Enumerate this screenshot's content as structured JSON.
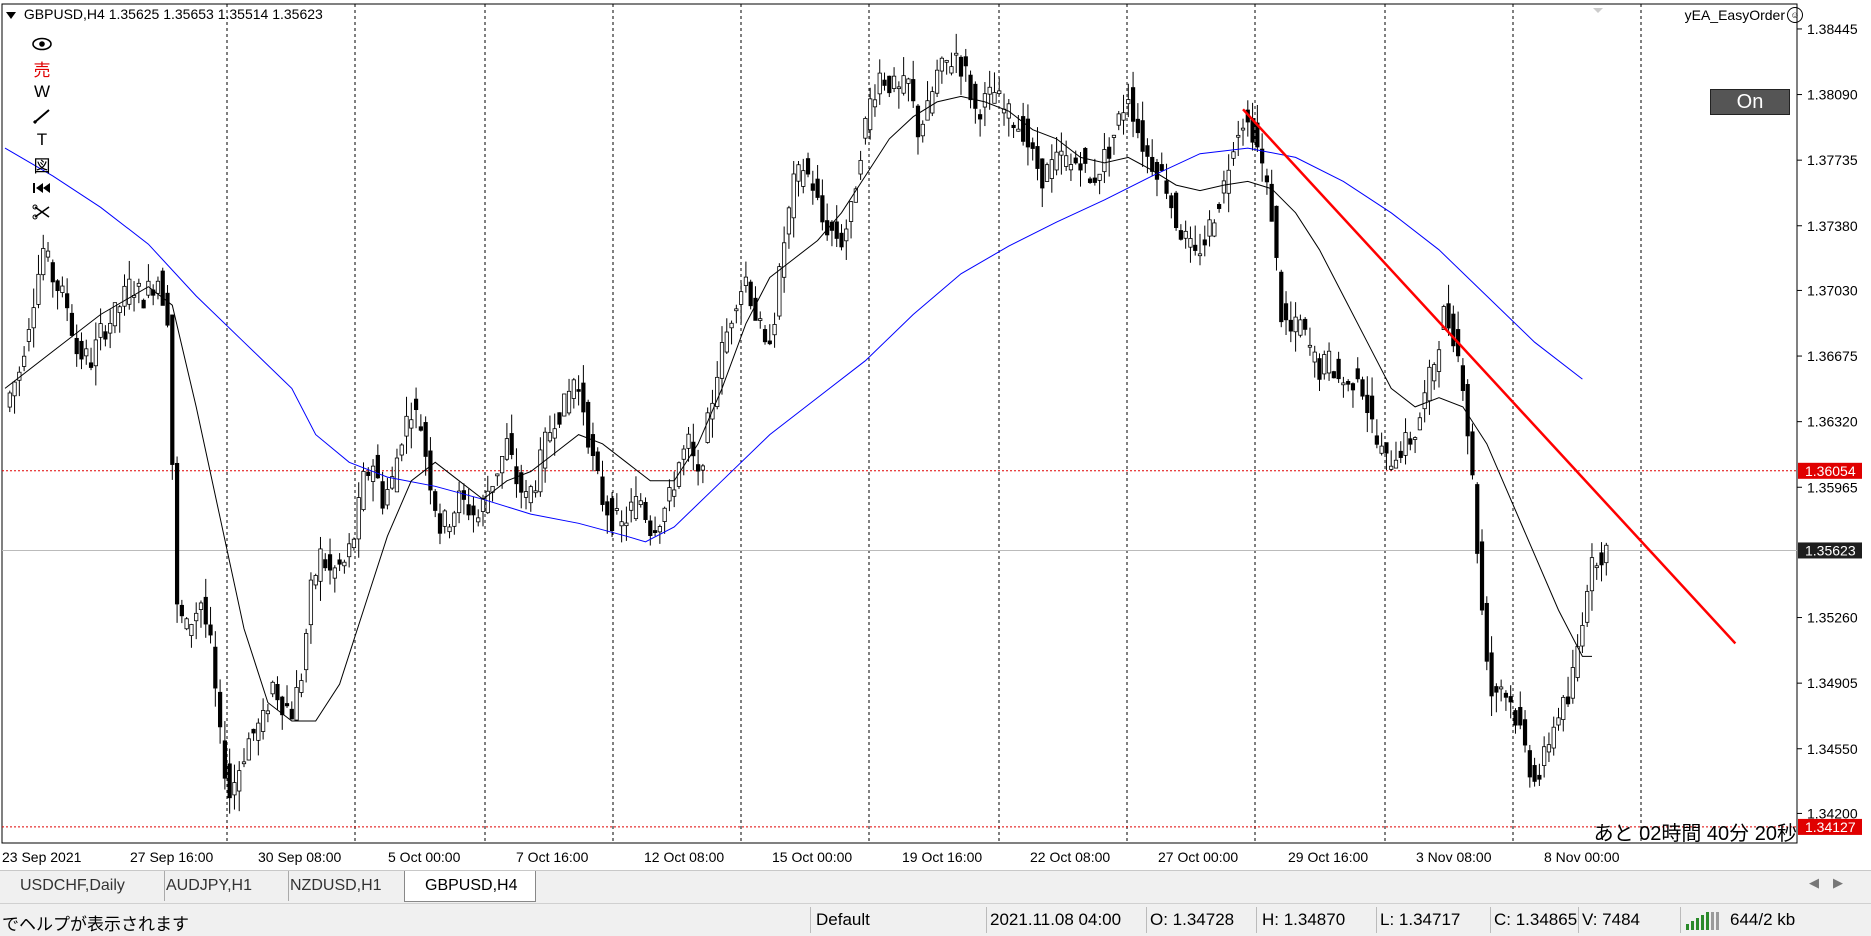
{
  "chart_header": {
    "symbol": "GBPUSD,H4",
    "ohlc": "1.35625 1.35653 1.35514 1.35623"
  },
  "ea": {
    "name": "yEA_EasyOrder",
    "on_label": "On",
    "countdown": "あと 02時間 40分 20秒"
  },
  "toolbar_icons": [
    "eye-icon",
    "sell-icon",
    "w-icon",
    "pen-icon",
    "text-icon",
    "shape-icon",
    "rewind-icon",
    "scissors-icon"
  ],
  "toolbar_text": {
    "sell": "売",
    "w": "W",
    "text": "T",
    "shape": "図"
  },
  "chart_data": {
    "type": "candlestick",
    "symbol": "GBPUSD",
    "timeframe": "H4",
    "ylim": [
      1.3404,
      1.3858
    ],
    "y_ticks": [
      "1.38445",
      "1.38090",
      "1.37735",
      "1.37380",
      "1.37030",
      "1.36675",
      "1.36320",
      "1.35965",
      "1.35260",
      "1.34905",
      "1.34550",
      "1.34200"
    ],
    "x_ticks": [
      "23 Sep 2021",
      "27 Sep 16:00",
      "30 Sep 08:00",
      "5 Oct 00:00",
      "7 Oct 16:00",
      "12 Oct 08:00",
      "15 Oct 00:00",
      "19 Oct 16:00",
      "22 Oct 08:00",
      "27 Oct 00:00",
      "29 Oct 16:00",
      "3 Nov 08:00",
      "8 Nov 00:00"
    ],
    "price_labels": [
      {
        "value": "1.36054",
        "price": 1.36054,
        "style": "red"
      },
      {
        "value": "1.35623",
        "price": 1.35623,
        "style": "dark"
      },
      {
        "value": "1.34127",
        "price": 1.34127,
        "style": "red"
      }
    ],
    "horizontal_lines": [
      {
        "price": 1.36054,
        "color": "#e00000",
        "style": "dotted"
      },
      {
        "price": 1.34127,
        "color": "#e00000",
        "style": "dotted"
      },
      {
        "price": 1.35623,
        "color": "#bbbbbb",
        "style": "solid"
      }
    ],
    "trendline": {
      "from": {
        "bar": 259,
        "price": 1.3801
      },
      "to": {
        "bar": 362,
        "price": 1.3512
      },
      "color": "#ff0000"
    },
    "ma_slow_color": "#0000ff",
    "ma_fast_color": "#000000",
    "waypoints": [
      [
        0,
        1.364
      ],
      [
        3,
        1.366
      ],
      [
        6,
        1.37
      ],
      [
        8,
        1.3725
      ],
      [
        10,
        1.371
      ],
      [
        13,
        1.3695
      ],
      [
        15,
        1.367
      ],
      [
        18,
        1.3665
      ],
      [
        20,
        1.368
      ],
      [
        23,
        1.369
      ],
      [
        26,
        1.3705
      ],
      [
        29,
        1.37
      ],
      [
        32,
        1.371
      ],
      [
        34,
        1.369
      ],
      [
        36,
        1.353
      ],
      [
        38,
        1.352
      ],
      [
        41,
        1.3535
      ],
      [
        43,
        1.351
      ],
      [
        45,
        1.346
      ],
      [
        47,
        1.343
      ],
      [
        49,
        1.3445
      ],
      [
        51,
        1.346
      ],
      [
        54,
        1.347
      ],
      [
        56,
        1.349
      ],
      [
        58,
        1.348
      ],
      [
        60,
        1.3475
      ],
      [
        62,
        1.3495
      ],
      [
        64,
        1.354
      ],
      [
        66,
        1.356
      ],
      [
        68,
        1.355
      ],
      [
        71,
        1.3555
      ],
      [
        73,
        1.357
      ],
      [
        75,
        1.36
      ],
      [
        77,
        1.361
      ],
      [
        79,
        1.359
      ],
      [
        81,
        1.36
      ],
      [
        83,
        1.3625
      ],
      [
        85,
        1.364
      ],
      [
        87,
        1.363
      ],
      [
        89,
        1.36
      ],
      [
        91,
        1.3575
      ],
      [
        93,
        1.358
      ],
      [
        95,
        1.359
      ],
      [
        97,
        1.3585
      ],
      [
        99,
        1.358
      ],
      [
        101,
        1.3595
      ],
      [
        103,
        1.3605
      ],
      [
        105,
        1.362
      ],
      [
        107,
        1.36
      ],
      [
        109,
        1.359
      ],
      [
        111,
        1.36
      ],
      [
        113,
        1.362
      ],
      [
        115,
        1.3635
      ],
      [
        117,
        1.364
      ],
      [
        119,
        1.3655
      ],
      [
        121,
        1.364
      ],
      [
        123,
        1.361
      ],
      [
        125,
        1.359
      ],
      [
        127,
        1.358
      ],
      [
        129,
        1.3575
      ],
      [
        131,
        1.3585
      ],
      [
        133,
        1.359
      ],
      [
        135,
        1.3575
      ],
      [
        137,
        1.358
      ],
      [
        139,
        1.359
      ],
      [
        141,
        1.361
      ],
      [
        143,
        1.362
      ],
      [
        145,
        1.36
      ],
      [
        147,
        1.363
      ],
      [
        149,
        1.366
      ],
      [
        151,
        1.368
      ],
      [
        153,
        1.37
      ],
      [
        155,
        1.371
      ],
      [
        157,
        1.369
      ],
      [
        159,
        1.367
      ],
      [
        161,
        1.369
      ],
      [
        163,
        1.373
      ],
      [
        165,
        1.376
      ],
      [
        167,
        1.377
      ],
      [
        169,
        1.376
      ],
      [
        171,
        1.374
      ],
      [
        173,
        1.3735
      ],
      [
        175,
        1.373
      ],
      [
        177,
        1.3745
      ],
      [
        179,
        1.378
      ],
      [
        181,
        1.3805
      ],
      [
        183,
        1.382
      ],
      [
        185,
        1.3815
      ],
      [
        187,
        1.381
      ],
      [
        189,
        1.3815
      ],
      [
        191,
        1.379
      ],
      [
        193,
        1.38
      ],
      [
        195,
        1.382
      ],
      [
        197,
        1.3825
      ],
      [
        199,
        1.383
      ],
      [
        201,
        1.382
      ],
      [
        203,
        1.38
      ],
      [
        205,
        1.3805
      ],
      [
        207,
        1.381
      ],
      [
        209,
        1.38
      ],
      [
        211,
        1.3795
      ],
      [
        213,
        1.379
      ],
      [
        215,
        1.3775
      ],
      [
        217,
        1.3765
      ],
      [
        219,
        1.377
      ],
      [
        221,
        1.3775
      ],
      [
        223,
        1.377
      ],
      [
        225,
        1.3775
      ],
      [
        227,
        1.376
      ],
      [
        229,
        1.377
      ],
      [
        231,
        1.378
      ],
      [
        233,
        1.3795
      ],
      [
        235,
        1.381
      ],
      [
        237,
        1.379
      ],
      [
        239,
        1.3775
      ],
      [
        241,
        1.377
      ],
      [
        243,
        1.376
      ],
      [
        245,
        1.374
      ],
      [
        247,
        1.373
      ],
      [
        249,
        1.372
      ],
      [
        251,
        1.373
      ],
      [
        253,
        1.3745
      ],
      [
        255,
        1.376
      ],
      [
        257,
        1.3785
      ],
      [
        259,
        1.3795
      ],
      [
        261,
        1.379
      ],
      [
        263,
        1.377
      ],
      [
        265,
        1.3745
      ],
      [
        267,
        1.369
      ],
      [
        269,
        1.368
      ],
      [
        271,
        1.3685
      ],
      [
        273,
        1.367
      ],
      [
        275,
        1.366
      ],
      [
        277,
        1.3665
      ],
      [
        279,
        1.3655
      ],
      [
        281,
        1.365
      ],
      [
        283,
        1.366
      ],
      [
        285,
        1.364
      ],
      [
        287,
        1.362
      ],
      [
        289,
        1.361
      ],
      [
        291,
        1.3615
      ],
      [
        293,
        1.362
      ],
      [
        295,
        1.3625
      ],
      [
        297,
        1.3645
      ],
      [
        299,
        1.3665
      ],
      [
        301,
        1.369
      ],
      [
        303,
        1.368
      ],
      [
        305,
        1.3655
      ],
      [
        307,
        1.36
      ],
      [
        309,
        1.353
      ],
      [
        311,
        1.3485
      ],
      [
        313,
        1.349
      ],
      [
        315,
        1.348
      ],
      [
        317,
        1.3465
      ],
      [
        319,
        1.3445
      ],
      [
        321,
        1.344
      ],
      [
        323,
        1.346
      ],
      [
        325,
        1.3475
      ],
      [
        327,
        1.348
      ],
      [
        329,
        1.351
      ],
      [
        331,
        1.3545
      ],
      [
        333,
        1.356
      ],
      [
        335,
        1.3562
      ]
    ],
    "ma_slow": [
      [
        0,
        1.378
      ],
      [
        10,
        1.3765
      ],
      [
        20,
        1.3748
      ],
      [
        30,
        1.3728
      ],
      [
        40,
        1.37
      ],
      [
        50,
        1.3675
      ],
      [
        60,
        1.365
      ],
      [
        65,
        1.3625
      ],
      [
        72,
        1.361
      ],
      [
        80,
        1.3602
      ],
      [
        90,
        1.3597
      ],
      [
        100,
        1.359
      ],
      [
        110,
        1.3582
      ],
      [
        120,
        1.3577
      ],
      [
        130,
        1.357
      ],
      [
        134,
        1.3567
      ],
      [
        140,
        1.3575
      ],
      [
        150,
        1.36
      ],
      [
        160,
        1.3625
      ],
      [
        170,
        1.3645
      ],
      [
        180,
        1.3665
      ],
      [
        190,
        1.369
      ],
      [
        200,
        1.3712
      ],
      [
        210,
        1.3727
      ],
      [
        220,
        1.374
      ],
      [
        230,
        1.3752
      ],
      [
        240,
        1.3765
      ],
      [
        250,
        1.3777
      ],
      [
        260,
        1.378
      ],
      [
        270,
        1.3775
      ],
      [
        280,
        1.3762
      ],
      [
        290,
        1.3745
      ],
      [
        300,
        1.3725
      ],
      [
        310,
        1.37
      ],
      [
        320,
        1.3675
      ],
      [
        330,
        1.3655
      ]
    ],
    "ma_fast": [
      [
        0,
        1.365
      ],
      [
        10,
        1.367
      ],
      [
        20,
        1.369
      ],
      [
        30,
        1.3705
      ],
      [
        35,
        1.3695
      ],
      [
        40,
        1.364
      ],
      [
        45,
        1.358
      ],
      [
        50,
        1.352
      ],
      [
        55,
        1.348
      ],
      [
        60,
        1.347
      ],
      [
        65,
        1.347
      ],
      [
        70,
        1.349
      ],
      [
        75,
        1.353
      ],
      [
        80,
        1.357
      ],
      [
        85,
        1.36
      ],
      [
        90,
        1.361
      ],
      [
        95,
        1.36
      ],
      [
        100,
        1.359
      ],
      [
        105,
        1.36
      ],
      [
        110,
        1.3605
      ],
      [
        115,
        1.3615
      ],
      [
        120,
        1.3625
      ],
      [
        125,
        1.362
      ],
      [
        130,
        1.361
      ],
      [
        135,
        1.36
      ],
      [
        140,
        1.36
      ],
      [
        145,
        1.362
      ],
      [
        150,
        1.365
      ],
      [
        155,
        1.3685
      ],
      [
        160,
        1.371
      ],
      [
        165,
        1.372
      ],
      [
        170,
        1.373
      ],
      [
        175,
        1.3745
      ],
      [
        180,
        1.3765
      ],
      [
        185,
        1.3785
      ],
      [
        190,
        1.3797
      ],
      [
        195,
        1.3805
      ],
      [
        200,
        1.3808
      ],
      [
        205,
        1.3805
      ],
      [
        210,
        1.38
      ],
      [
        215,
        1.379
      ],
      [
        220,
        1.3785
      ],
      [
        225,
        1.3775
      ],
      [
        230,
        1.3772
      ],
      [
        235,
        1.3775
      ],
      [
        240,
        1.3768
      ],
      [
        245,
        1.376
      ],
      [
        250,
        1.3757
      ],
      [
        255,
        1.376
      ],
      [
        260,
        1.3762
      ],
      [
        265,
        1.3758
      ],
      [
        270,
        1.3745
      ],
      [
        275,
        1.3725
      ],
      [
        280,
        1.37
      ],
      [
        285,
        1.3675
      ],
      [
        290,
        1.365
      ],
      [
        295,
        1.364
      ],
      [
        300,
        1.3645
      ],
      [
        305,
        1.364
      ],
      [
        310,
        1.362
      ],
      [
        315,
        1.359
      ],
      [
        320,
        1.356
      ],
      [
        325,
        1.353
      ],
      [
        330,
        1.3505
      ],
      [
        332,
        1.3505
      ]
    ]
  },
  "tabs": [
    {
      "label": "USDCHF,Daily",
      "active": false
    },
    {
      "label": "AUDJPY,H1",
      "active": false
    },
    {
      "label": "NZDUSD,H1",
      "active": false
    },
    {
      "label": "GBPUSD,H4",
      "active": true
    }
  ],
  "status": {
    "help": "でヘルプが表示されます",
    "profile": "Default",
    "datetime": "2021.11.08 04:00",
    "open": "O: 1.34728",
    "high": "H: 1.34870",
    "low": "L: 1.34717",
    "close": "C: 1.34865",
    "volume": "V: 7484",
    "traffic": "644/2 kb"
  }
}
